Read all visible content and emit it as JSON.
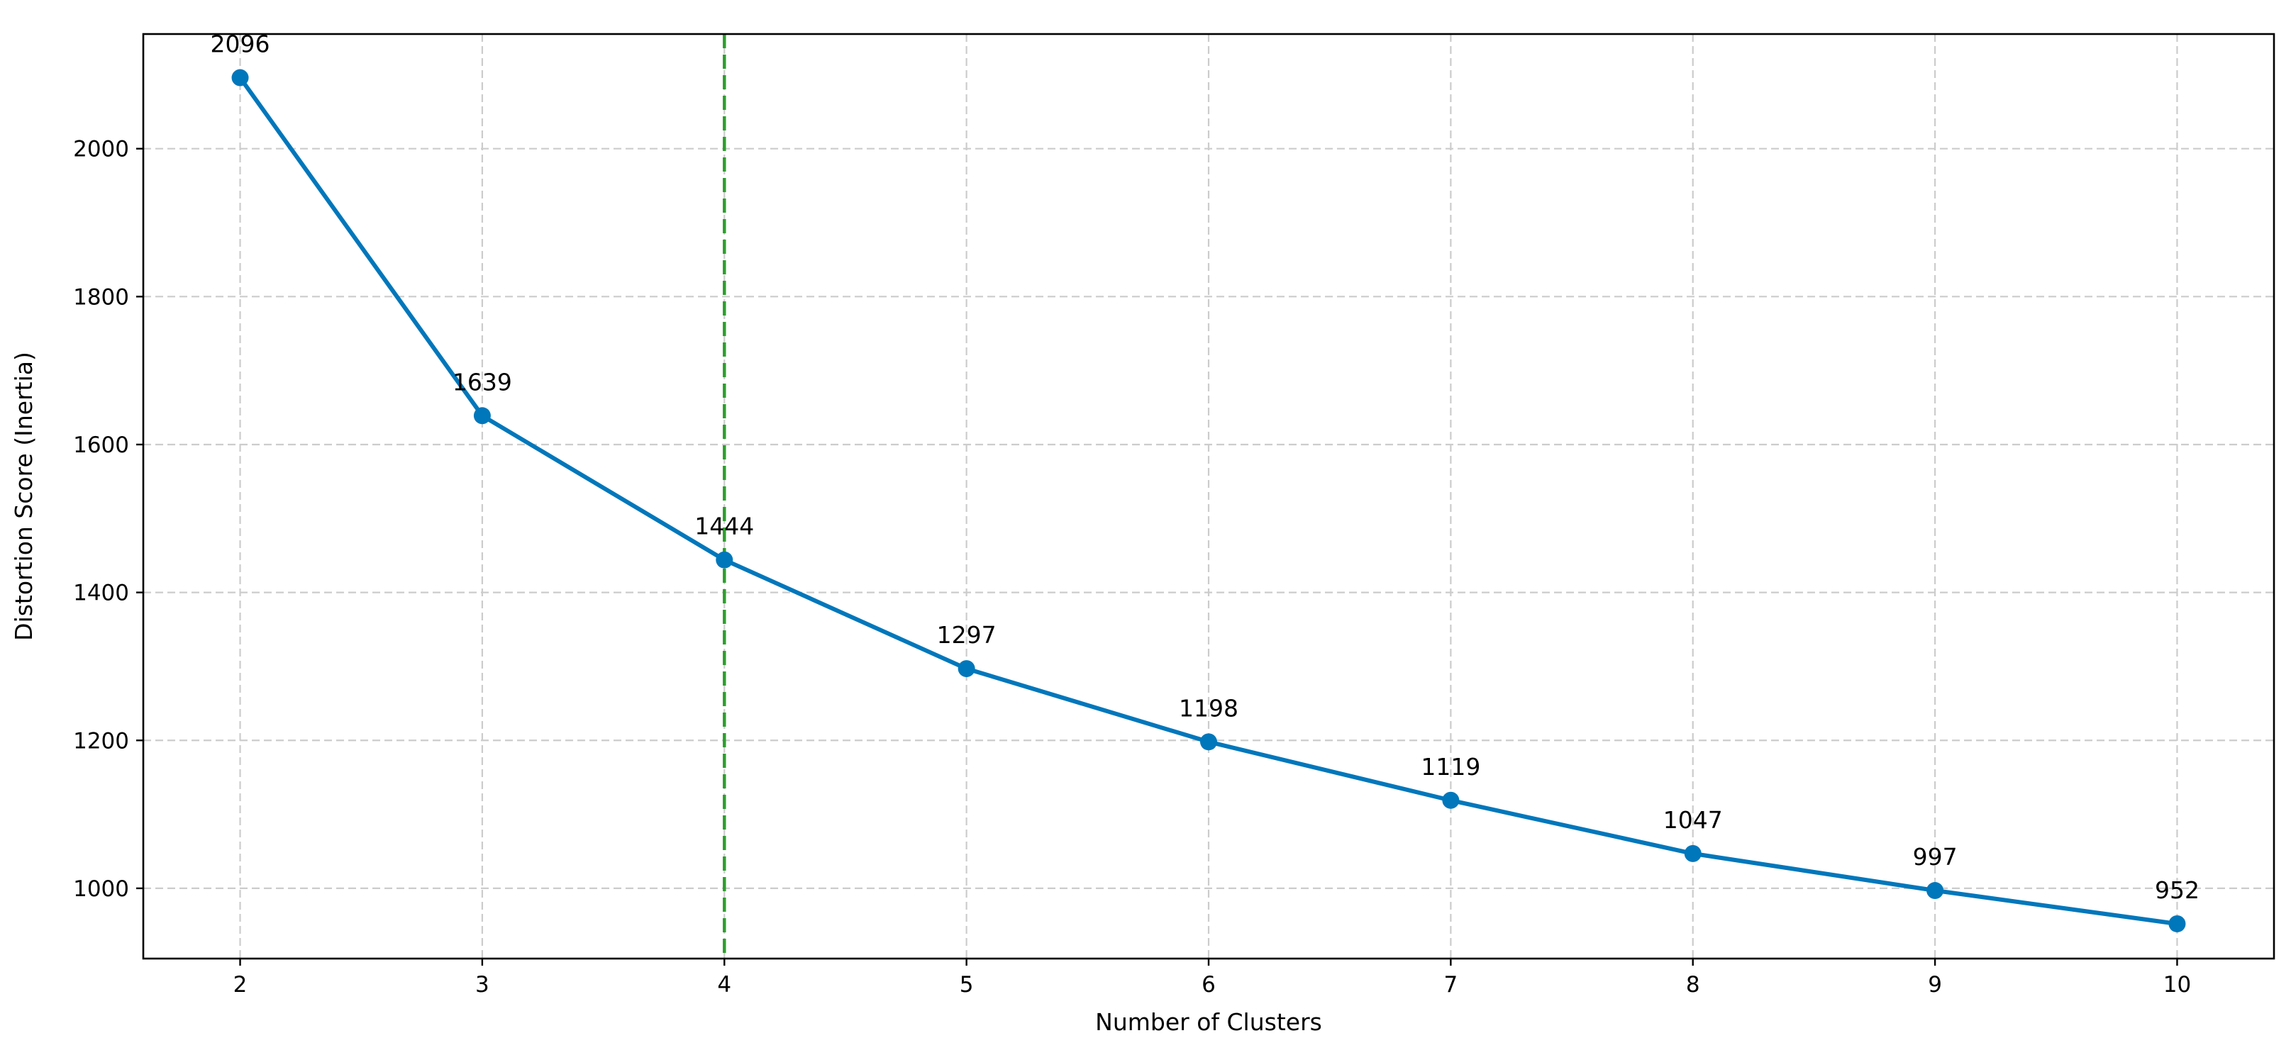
{
  "chart_data": {
    "type": "line",
    "title": "",
    "xlabel": "Number of Clusters",
    "ylabel": "Distortion Score (Inertia)",
    "x": [
      2,
      3,
      4,
      5,
      6,
      7,
      8,
      9,
      10
    ],
    "x_tick_labels": [
      "2",
      "3",
      "4",
      "5",
      "6",
      "7",
      "8",
      "9",
      "10"
    ],
    "y_ticks": [
      1000,
      1200,
      1400,
      1600,
      1800,
      2000
    ],
    "y_tick_labels": [
      "1000",
      "1200",
      "1400",
      "1600",
      "1800",
      "2000"
    ],
    "xlim": [
      1.6,
      10.4
    ],
    "ylim": [
      905,
      2155
    ],
    "grid": true,
    "series": [
      {
        "values": [
          2096,
          1639,
          1444,
          1297,
          1198,
          1119,
          1047,
          997,
          952
        ],
        "data_labels": [
          "2096",
          "1639",
          "1444",
          "1297",
          "1198",
          "1119",
          "1047",
          "997",
          "952"
        ],
        "color": "#0077bb",
        "marker": "circle"
      }
    ],
    "reference_line": {
      "orientation": "vertical",
      "x": 4,
      "style": "dashed",
      "color": "#2ca02c"
    },
    "colors": {
      "grid": "#cccccc",
      "axis": "#000000"
    }
  }
}
